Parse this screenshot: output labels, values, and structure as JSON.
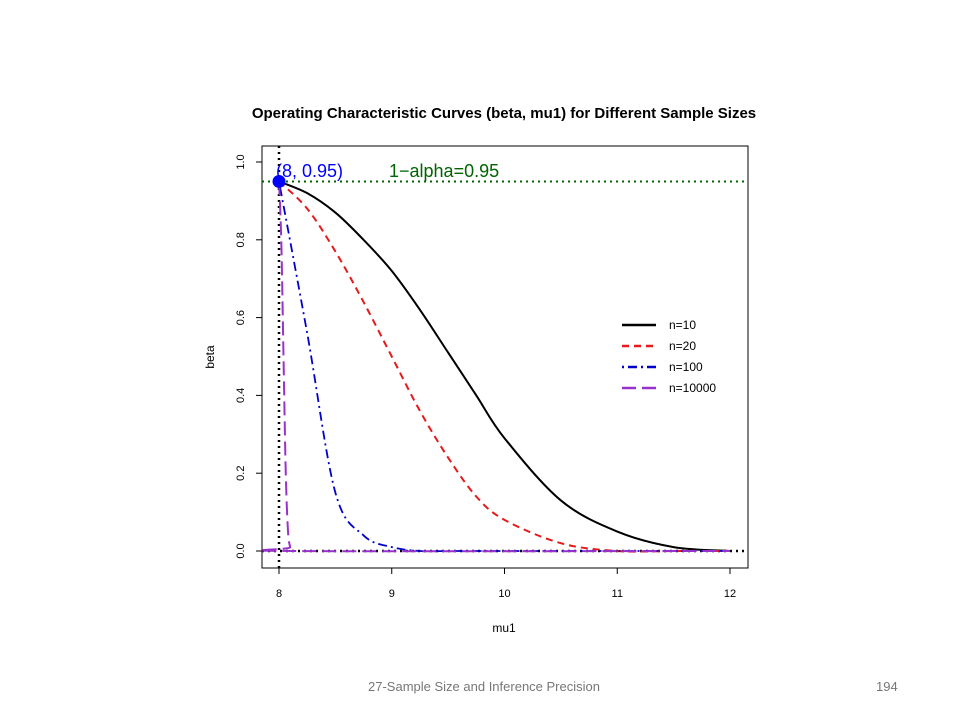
{
  "footer": {
    "left": "27-Sample Size and Inference Precision",
    "page": "194"
  },
  "chart_data": {
    "type": "line",
    "title": "Operating Characteristic Curves (beta, mu1) for Different Sample Sizes",
    "xlabel": "mu1",
    "ylabel": "beta",
    "xlim": [
      8,
      12
    ],
    "ylim": [
      0,
      1
    ],
    "x_ticks": [
      "8",
      "9",
      "10",
      "11",
      "12"
    ],
    "y_ticks": [
      "0.0",
      "0.2",
      "0.4",
      "0.6",
      "0.8",
      "1.0"
    ],
    "grid": false,
    "legend_position": "right",
    "x": [
      8.0,
      8.25,
      8.5,
      8.75,
      9.0,
      9.25,
      9.5,
      9.75,
      10.0,
      10.5,
      11.0,
      11.5,
      12.0
    ],
    "series": [
      {
        "name": "n=10",
        "color": "#000000",
        "dash": "solid",
        "width": 2,
        "values": [
          0.95,
          0.92,
          0.87,
          0.8,
          0.72,
          0.62,
          0.51,
          0.4,
          0.29,
          0.13,
          0.05,
          0.01,
          0.0
        ]
      },
      {
        "name": "n=20",
        "color": "#e41a1c",
        "dash": "dashed",
        "width": 2,
        "values": [
          0.95,
          0.88,
          0.77,
          0.64,
          0.5,
          0.36,
          0.24,
          0.14,
          0.08,
          0.02,
          0.0,
          0.0,
          0.0
        ]
      },
      {
        "name": "n=100",
        "color": "#0000cc",
        "dash": "dotdash",
        "width": 1.8,
        "values": [
          0.95,
          0.56,
          0.15,
          0.04,
          0.01,
          0.0,
          0.0,
          0.0,
          0.0,
          0.0,
          0.0,
          0.0,
          0.0
        ]
      },
      {
        "name": "n=10000",
        "color": "#9932cc",
        "dash": "longdash",
        "width": 2,
        "values": [
          0.95,
          0.0,
          0.0,
          0.0,
          0.0,
          0.0,
          0.0,
          0.0,
          0.0,
          0.0,
          0.0,
          0.0,
          0.0
        ],
        "detail_x": [
          8.0,
          8.02,
          8.04,
          8.06,
          8.08,
          8.1,
          8.12
        ],
        "detail_values": [
          0.95,
          0.8,
          0.5,
          0.2,
          0.05,
          0.01,
          0.0
        ]
      }
    ],
    "reference_lines": {
      "hline": {
        "y": 0.95,
        "color": "#006400",
        "label": "1−alpha=0.95"
      },
      "vline": {
        "x": 8
      },
      "zero_hline": {
        "y": 0
      }
    },
    "point": {
      "x": 8,
      "y": 0.95,
      "label": "(8, 0.95)",
      "color": "#0000ff"
    }
  }
}
